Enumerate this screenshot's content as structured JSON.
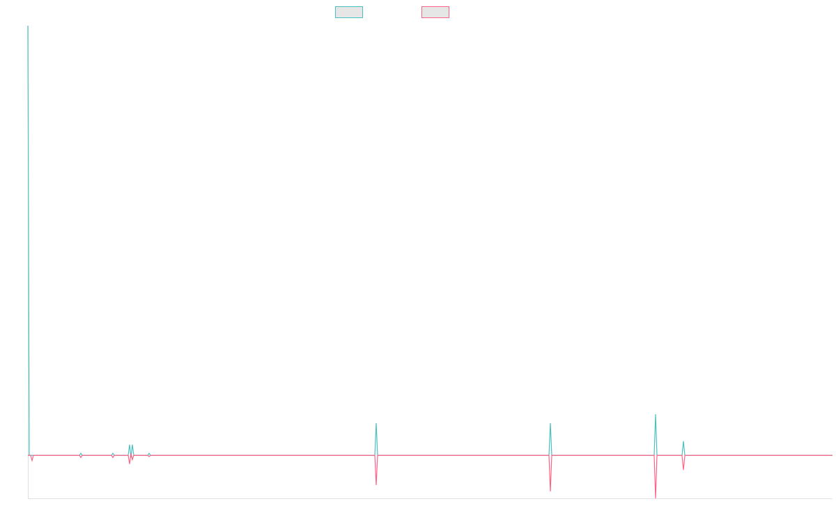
{
  "chart_data": {
    "type": "line",
    "x": [
      0,
      2,
      4,
      6,
      8,
      74,
      76,
      78,
      120,
      122,
      124,
      144,
      146,
      148,
      150,
      152,
      172,
      174,
      176,
      498,
      500,
      502,
      748,
      750,
      752,
      899,
      901,
      903,
      939,
      941,
      943,
      1155
    ],
    "series": [
      {
        "color": "#4bc0c0",
        "values": [
          100,
          0,
          0,
          0,
          0,
          0,
          0.5,
          0,
          0,
          0.5,
          0,
          0,
          2.5,
          -0.5,
          2.5,
          0,
          0,
          0.5,
          0,
          0,
          7.5,
          0,
          0,
          7.5,
          0,
          0,
          9.6,
          0,
          0,
          3.3,
          0,
          0
        ]
      },
      {
        "color": "#ff6384",
        "values": [
          0,
          0,
          0,
          -1.2,
          0,
          0,
          -0.5,
          0,
          0,
          -0.5,
          0,
          0,
          -2,
          0.5,
          -1,
          0,
          0,
          -0.3,
          0,
          0,
          -6.9,
          0,
          0,
          -8.4,
          0,
          0,
          -10,
          0,
          0,
          -3.4,
          0,
          0
        ]
      }
    ],
    "xlim": [
      0,
      1155
    ],
    "ylim": [
      -10,
      100
    ]
  }
}
